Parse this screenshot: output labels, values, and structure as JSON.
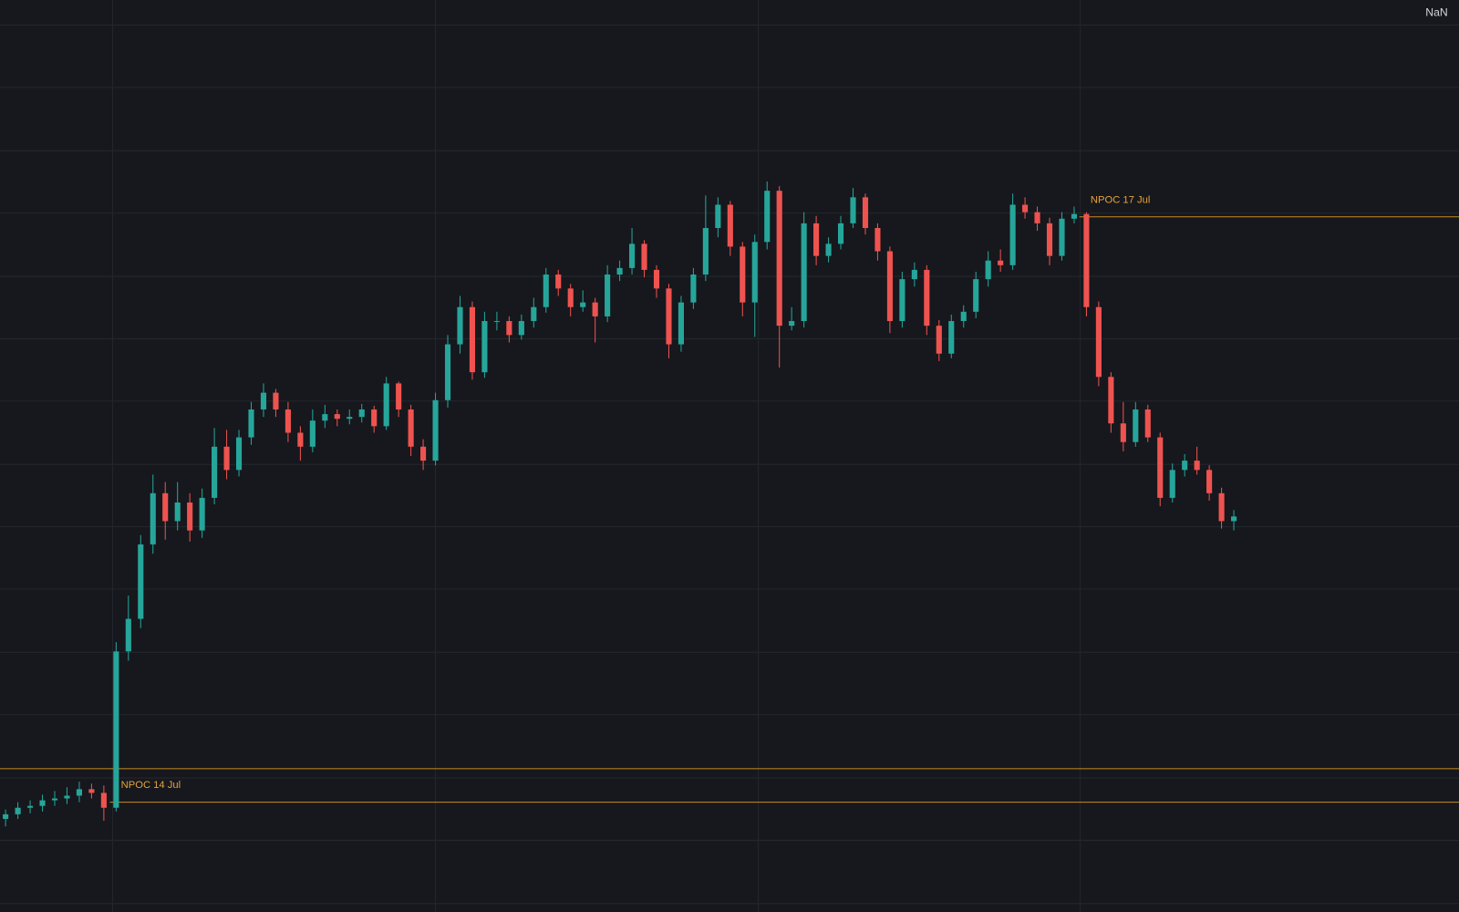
{
  "chart_data": {
    "type": "candlestick",
    "price_label": "NaN",
    "ylim": [
      0,
      980
    ],
    "up_color": "#26a69a",
    "down_color": "#ef5350",
    "level_color": "#c88a1e",
    "levels": [
      {
        "value": 154
      },
      {
        "label": "NPOC 14 Jul",
        "value": 118
      },
      {
        "label": "NPOC 17 Jul",
        "value": 747
      }
    ],
    "candles": [
      [
        100,
        110,
        92,
        105
      ],
      [
        105,
        118,
        100,
        112
      ],
      [
        112,
        120,
        106,
        114
      ],
      [
        114,
        126,
        108,
        120
      ],
      [
        120,
        130,
        114,
        122
      ],
      [
        122,
        134,
        116,
        125
      ],
      [
        125,
        140,
        118,
        132
      ],
      [
        132,
        138,
        122,
        128
      ],
      [
        128,
        136,
        98,
        112
      ],
      [
        112,
        290,
        108,
        280
      ],
      [
        280,
        340,
        270,
        315
      ],
      [
        315,
        405,
        305,
        395
      ],
      [
        395,
        470,
        385,
        450
      ],
      [
        450,
        462,
        400,
        420
      ],
      [
        420,
        462,
        410,
        440
      ],
      [
        440,
        450,
        398,
        410
      ],
      [
        410,
        455,
        402,
        445
      ],
      [
        445,
        520,
        438,
        500
      ],
      [
        500,
        518,
        465,
        475
      ],
      [
        475,
        518,
        468,
        510
      ],
      [
        510,
        548,
        502,
        540
      ],
      [
        540,
        568,
        532,
        558
      ],
      [
        558,
        562,
        532,
        540
      ],
      [
        540,
        548,
        505,
        515
      ],
      [
        515,
        522,
        485,
        500
      ],
      [
        500,
        540,
        494,
        528
      ],
      [
        528,
        545,
        520,
        535
      ],
      [
        535,
        540,
        522,
        530
      ],
      [
        530,
        540,
        524,
        532
      ],
      [
        532,
        546,
        526,
        540
      ],
      [
        540,
        544,
        515,
        522
      ],
      [
        522,
        575,
        518,
        568
      ],
      [
        568,
        570,
        532,
        540
      ],
      [
        540,
        545,
        490,
        500
      ],
      [
        500,
        508,
        475,
        485
      ],
      [
        485,
        558,
        480,
        550
      ],
      [
        550,
        620,
        542,
        610
      ],
      [
        610,
        662,
        600,
        650
      ],
      [
        650,
        656,
        572,
        580
      ],
      [
        580,
        645,
        574,
        635
      ],
      [
        635,
        645,
        625,
        635
      ],
      [
        635,
        640,
        612,
        620
      ],
      [
        620,
        642,
        615,
        635
      ],
      [
        635,
        660,
        628,
        650
      ],
      [
        650,
        692,
        644,
        685
      ],
      [
        685,
        690,
        662,
        670
      ],
      [
        670,
        675,
        640,
        650
      ],
      [
        650,
        668,
        645,
        655
      ],
      [
        655,
        660,
        612,
        640
      ],
      [
        640,
        695,
        634,
        685
      ],
      [
        685,
        700,
        678,
        692
      ],
      [
        692,
        735,
        685,
        718
      ],
      [
        718,
        722,
        682,
        690
      ],
      [
        690,
        695,
        660,
        670
      ],
      [
        670,
        675,
        595,
        610
      ],
      [
        610,
        662,
        602,
        655
      ],
      [
        655,
        692,
        648,
        685
      ],
      [
        685,
        770,
        678,
        735
      ],
      [
        735,
        768,
        725,
        760
      ],
      [
        760,
        764,
        705,
        715
      ],
      [
        715,
        720,
        640,
        655
      ],
      [
        655,
        728,
        618,
        720
      ],
      [
        720,
        785,
        712,
        775
      ],
      [
        775,
        780,
        585,
        630
      ],
      [
        630,
        650,
        625,
        635
      ],
      [
        635,
        752,
        628,
        740
      ],
      [
        740,
        748,
        695,
        705
      ],
      [
        705,
        725,
        698,
        718
      ],
      [
        718,
        748,
        712,
        740
      ],
      [
        740,
        778,
        735,
        768
      ],
      [
        768,
        772,
        728,
        735
      ],
      [
        735,
        740,
        700,
        710
      ],
      [
        710,
        715,
        622,
        635
      ],
      [
        635,
        688,
        628,
        680
      ],
      [
        680,
        698,
        672,
        690
      ],
      [
        690,
        695,
        620,
        630
      ],
      [
        630,
        636,
        592,
        600
      ],
      [
        600,
        642,
        595,
        635
      ],
      [
        635,
        652,
        628,
        645
      ],
      [
        645,
        688,
        638,
        680
      ],
      [
        680,
        710,
        672,
        700
      ],
      [
        700,
        712,
        688,
        695
      ],
      [
        695,
        772,
        690,
        760
      ],
      [
        760,
        768,
        745,
        752
      ],
      [
        752,
        758,
        732,
        740
      ],
      [
        740,
        746,
        695,
        705
      ],
      [
        705,
        752,
        700,
        745
      ],
      [
        745,
        758,
        740,
        750
      ],
      [
        750,
        752,
        640,
        650
      ],
      [
        650,
        656,
        565,
        575
      ],
      [
        575,
        580,
        515,
        525
      ],
      [
        525,
        548,
        495,
        505
      ],
      [
        505,
        548,
        500,
        540
      ],
      [
        540,
        545,
        505,
        510
      ],
      [
        510,
        515,
        436,
        445
      ],
      [
        445,
        482,
        440,
        475
      ],
      [
        475,
        492,
        468,
        485
      ],
      [
        485,
        500,
        470,
        475
      ],
      [
        475,
        480,
        442,
        450
      ],
      [
        450,
        456,
        412,
        420
      ],
      [
        420,
        432,
        410,
        425
      ]
    ]
  }
}
